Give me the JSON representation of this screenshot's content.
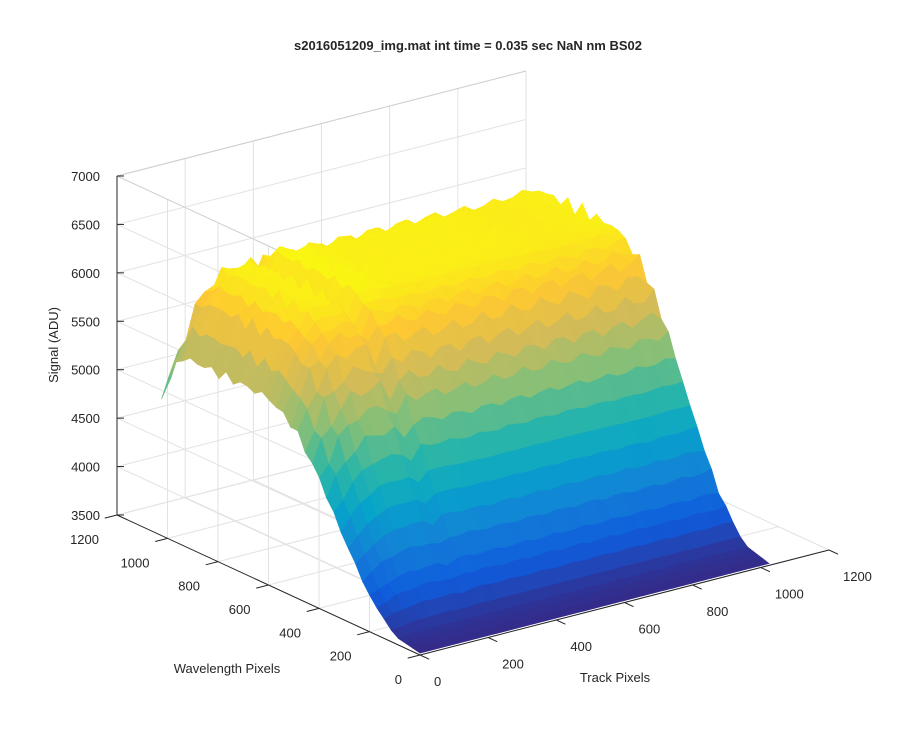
{
  "figure": {
    "background": "#ffffff"
  },
  "chart_data": {
    "type": "surface",
    "title": "s2016051209_img.mat int time = 0.035 sec  NaN nm BS02",
    "xlabel": "Track Pixels",
    "ylabel": "Wavelength Pixels",
    "zlabel": "Signal (ADU)",
    "xlim": [
      0,
      1200
    ],
    "ylim": [
      0,
      1200
    ],
    "zlim": [
      3500,
      7000
    ],
    "xticks": [
      "0",
      "200",
      "400",
      "600",
      "800",
      "1000",
      "1200"
    ],
    "yticks": [
      "0",
      "200",
      "400",
      "600",
      "800",
      "1000",
      "1200"
    ],
    "zticks": [
      "3500",
      "4000",
      "4500",
      "5000",
      "5500",
      "6000",
      "6500",
      "7000"
    ],
    "grid": true,
    "box": true,
    "colormap": "parula",
    "colormap_stops": [
      "#352a87",
      "#0f5cdd",
      "#1481d6",
      "#06a4ca",
      "#2eb7a4",
      "#87bf77",
      "#d1bb59",
      "#fec832",
      "#f9fb0e"
    ],
    "surface_extent": {
      "track_pixels": [
        0,
        1024
      ],
      "wavelength_pixels": [
        0,
        1024
      ]
    },
    "signal_profile_along_wavelength": [
      [
        0,
        3520
      ],
      [
        100,
        3600
      ],
      [
        200,
        4020
      ],
      [
        300,
        4680
      ],
      [
        400,
        5420
      ],
      [
        500,
        6000
      ],
      [
        600,
        6250
      ],
      [
        700,
        6270
      ],
      [
        800,
        6270
      ],
      [
        900,
        6280
      ],
      [
        960,
        6220
      ],
      [
        1024,
        5550
      ]
    ],
    "signal_profile_along_track": [
      [
        0,
        0.7
      ],
      [
        60,
        0.9
      ],
      [
        120,
        1.0
      ],
      [
        200,
        1.0
      ],
      [
        230,
        0.93
      ],
      [
        255,
        1.02
      ],
      [
        400,
        1.0
      ],
      [
        700,
        1.0
      ],
      [
        880,
        0.99
      ],
      [
        1024,
        1.0
      ]
    ]
  }
}
